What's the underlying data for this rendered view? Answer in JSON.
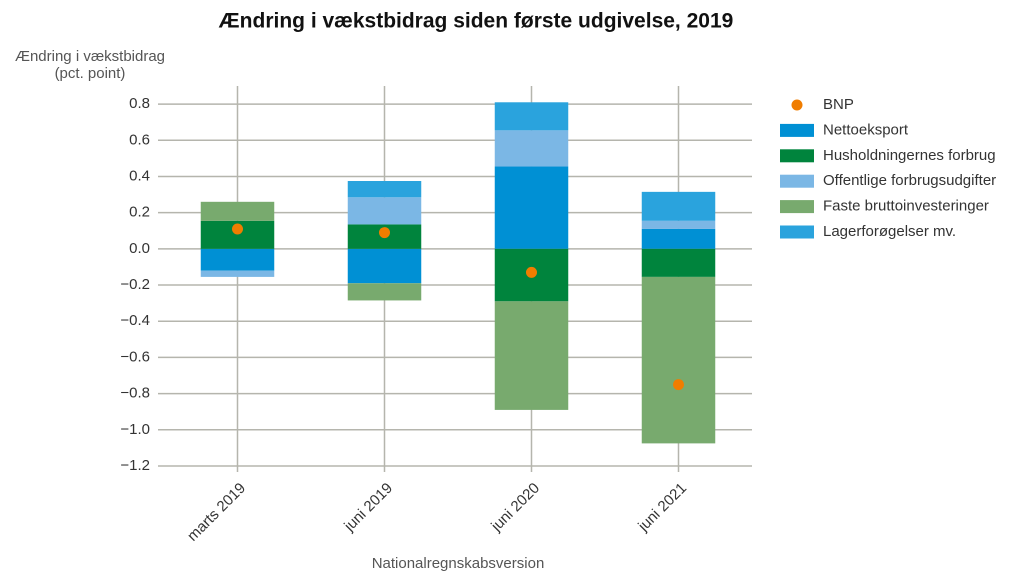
{
  "chart_data": {
    "type": "bar",
    "stacked": true,
    "title": "Ændring i vækstbidrag siden første udgivelse, 2019",
    "y_label": [
      "Ændring i vækstbidrag",
      "(pct. point)"
    ],
    "x_label": "Nationalregnskabsversion",
    "categories": [
      "marts 2019",
      "juni 2019",
      "juni 2020",
      "juni 2021"
    ],
    "series": [
      {
        "name": "BNP",
        "type": "scatter",
        "color": "#f07d00",
        "values": [
          0.11,
          0.09,
          -0.13,
          -0.75
        ]
      },
      {
        "name": "Nettoeksport",
        "color": "#0090d4",
        "values": [
          -0.12,
          -0.19,
          0.455,
          0.11
        ]
      },
      {
        "name": "Husholdningernes forbrug",
        "color": "#00843d",
        "values": [
          0.155,
          0.135,
          -0.29,
          -0.155
        ]
      },
      {
        "name": "Offentlige forbrugsudgifter",
        "color": "#7bb7e5",
        "values": [
          -0.035,
          0.15,
          0.2,
          0.045
        ]
      },
      {
        "name": "Faste bruttoinvesteringer",
        "color": "#78aa6e",
        "values": [
          0.105,
          -0.095,
          -0.6,
          -0.92
        ]
      },
      {
        "name": "Lagerforøgelser mv.",
        "color": "#2aa3dd",
        "values": [
          0,
          0.09,
          0.155,
          0.16
        ]
      }
    ],
    "ylim": [
      -1.2,
      0.9
    ],
    "yticks": [
      {
        "value": -1.2,
        "label": "−1.2"
      },
      {
        "value": -1.0,
        "label": "−1.0"
      },
      {
        "value": -0.8,
        "label": "−0.8"
      },
      {
        "value": -0.6,
        "label": "−0.6"
      },
      {
        "value": -0.4,
        "label": "−0.4"
      },
      {
        "value": -0.2,
        "label": "−0.2"
      },
      {
        "value": 0,
        "label": "0.0"
      },
      0.2,
      0.4,
      0.6,
      0.8
    ],
    "grid": true,
    "legend": "right"
  }
}
